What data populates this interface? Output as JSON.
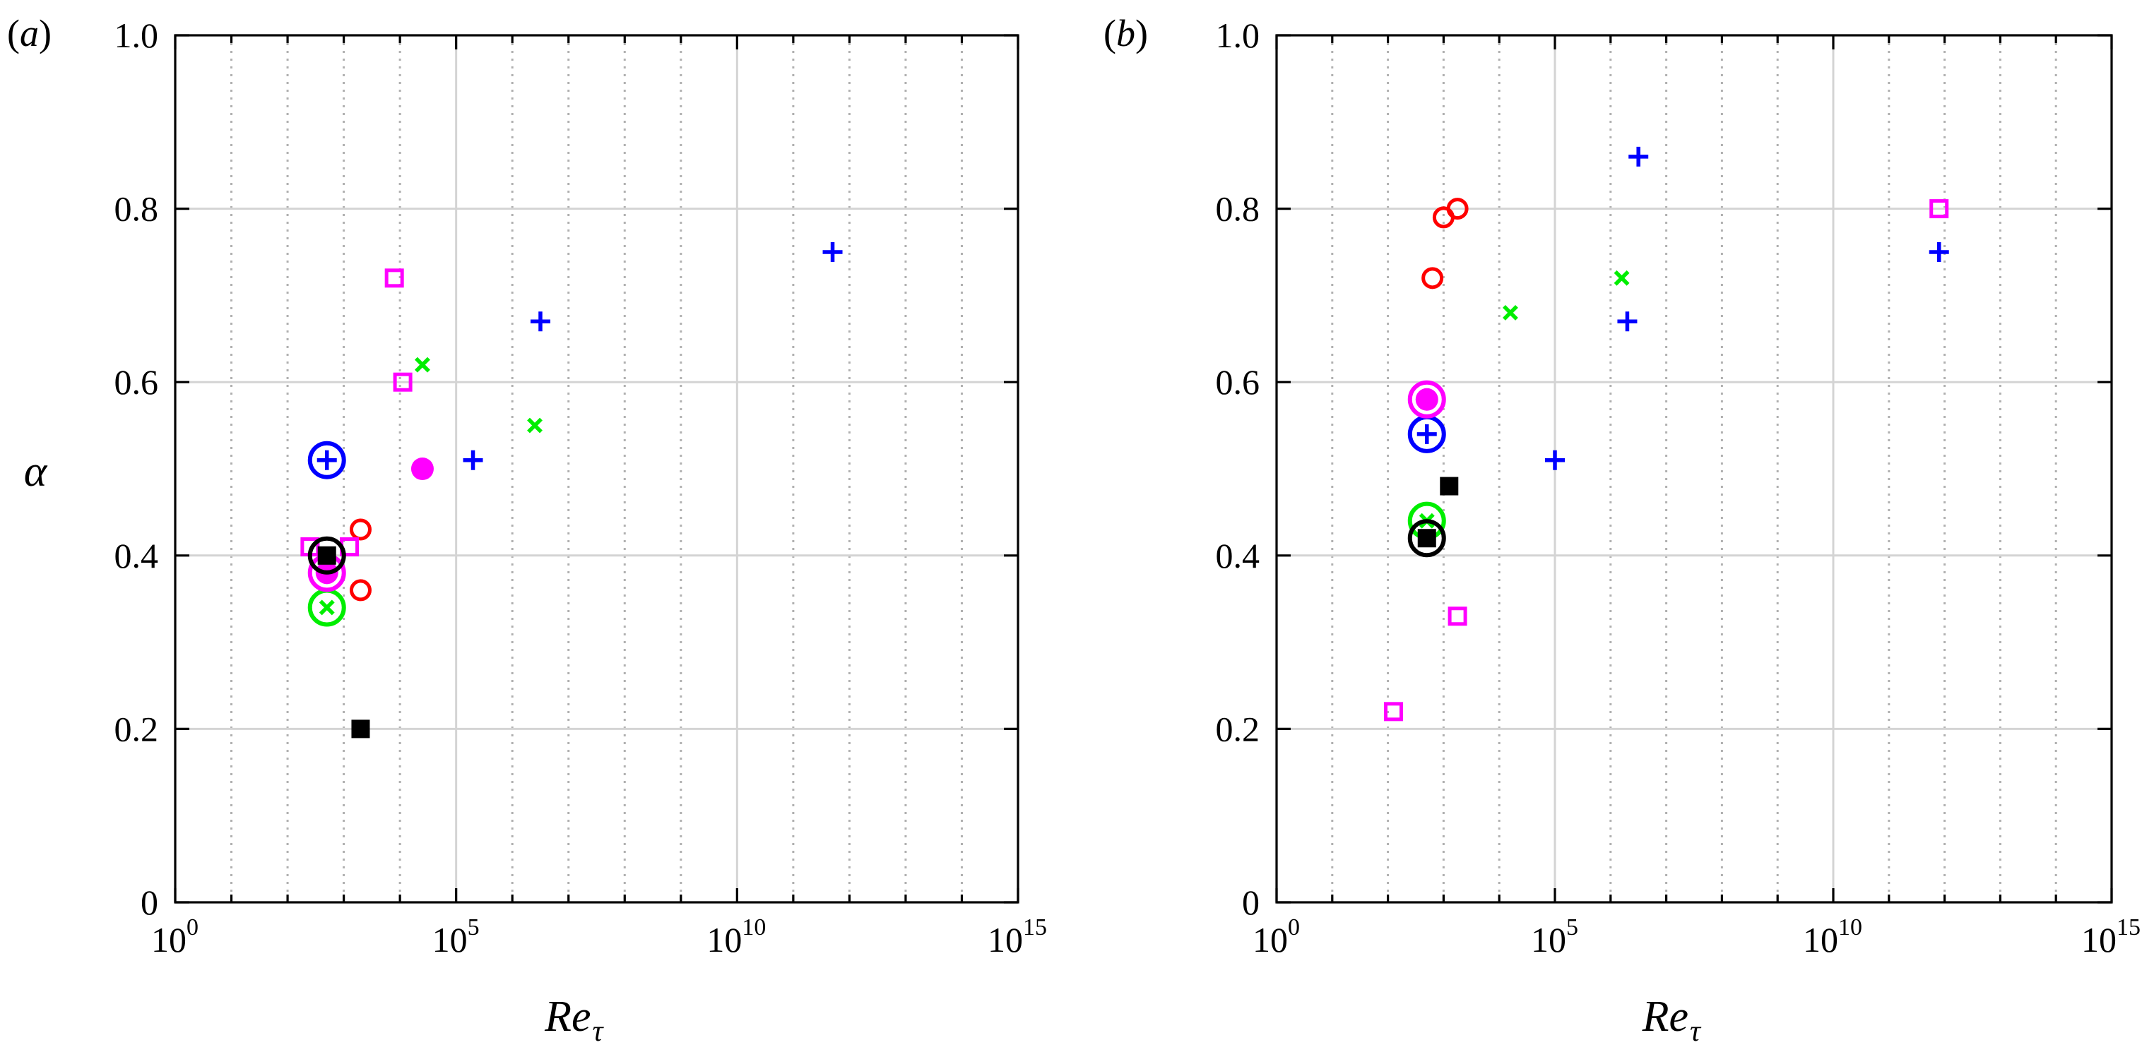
{
  "colors": {
    "blue": "#0000ff",
    "red": "#ff0000",
    "green": "#00ee00",
    "magenta": "#ff00ff",
    "black": "#000000"
  },
  "chart_data": [
    {
      "type": "scatter",
      "panel": "a",
      "panel_label": "(a)",
      "panel_label_text": "a",
      "xscale": "log",
      "xlim_exponent": [
        0,
        15
      ],
      "xticks_exponents": [
        0,
        5,
        10,
        15
      ],
      "xtick_base": "10",
      "ylim": [
        0,
        1.0
      ],
      "yticks": [
        "0",
        "0.2",
        "0.4",
        "0.6",
        "0.8",
        "1.0"
      ],
      "xlabel": "Re",
      "xlabel_sub": "τ",
      "ylabel": "α",
      "grid": true,
      "series": [
        {
          "name": "blue-plus",
          "color": "blue",
          "marker": "+",
          "points": [
            {
              "log10_x": 2.7,
              "y": 0.51,
              "circled": true
            },
            {
              "log10_x": 5.3,
              "y": 0.51
            },
            {
              "log10_x": 6.5,
              "y": 0.67
            },
            {
              "log10_x": 11.7,
              "y": 0.75
            }
          ]
        },
        {
          "name": "red-circle",
          "color": "red",
          "marker": "o",
          "points": [
            {
              "log10_x": 3.3,
              "y": 0.43
            },
            {
              "log10_x": 3.3,
              "y": 0.36
            }
          ]
        },
        {
          "name": "green-x",
          "color": "green",
          "marker": "x",
          "points": [
            {
              "log10_x": 2.7,
              "y": 0.34,
              "circled": true
            },
            {
              "log10_x": 4.4,
              "y": 0.62
            },
            {
              "log10_x": 6.4,
              "y": 0.55
            }
          ]
        },
        {
          "name": "magenta-square",
          "color": "magenta",
          "marker": "square-open",
          "points": [
            {
              "log10_x": 2.4,
              "y": 0.41
            },
            {
              "log10_x": 3.1,
              "y": 0.41
            },
            {
              "log10_x": 3.9,
              "y": 0.72
            },
            {
              "log10_x": 4.05,
              "y": 0.6
            }
          ]
        },
        {
          "name": "magenta-dot",
          "color": "magenta",
          "marker": "dot",
          "points": [
            {
              "log10_x": 2.7,
              "y": 0.38,
              "circled": true
            },
            {
              "log10_x": 4.4,
              "y": 0.5
            }
          ]
        },
        {
          "name": "black-square",
          "color": "black",
          "marker": "square-filled",
          "points": [
            {
              "log10_x": 2.7,
              "y": 0.4,
              "circled": true
            },
            {
              "log10_x": 3.3,
              "y": 0.2
            }
          ]
        }
      ]
    },
    {
      "type": "scatter",
      "panel": "b",
      "panel_label": "(b)",
      "panel_label_text": "b",
      "xscale": "log",
      "xlim_exponent": [
        0,
        15
      ],
      "xticks_exponents": [
        0,
        5,
        10,
        15
      ],
      "xtick_base": "10",
      "ylim": [
        0,
        1.0
      ],
      "yticks": [
        "0",
        "0.2",
        "0.4",
        "0.6",
        "0.8",
        "1.0"
      ],
      "xlabel": "Re",
      "xlabel_sub": "τ",
      "ylabel": "",
      "grid": true,
      "series": [
        {
          "name": "blue-plus",
          "color": "blue",
          "marker": "+",
          "points": [
            {
              "log10_x": 2.7,
              "y": 0.54,
              "circled": true
            },
            {
              "log10_x": 5.0,
              "y": 0.51
            },
            {
              "log10_x": 6.3,
              "y": 0.67
            },
            {
              "log10_x": 6.5,
              "y": 0.86
            },
            {
              "log10_x": 11.9,
              "y": 0.75
            }
          ]
        },
        {
          "name": "red-circle",
          "color": "red",
          "marker": "o",
          "points": [
            {
              "log10_x": 2.8,
              "y": 0.72
            },
            {
              "log10_x": 3.0,
              "y": 0.79
            },
            {
              "log10_x": 3.25,
              "y": 0.8
            }
          ]
        },
        {
          "name": "green-x",
          "color": "green",
          "marker": "x",
          "points": [
            {
              "log10_x": 2.7,
              "y": 0.44,
              "circled": true
            },
            {
              "log10_x": 4.2,
              "y": 0.68
            },
            {
              "log10_x": 6.2,
              "y": 0.72
            }
          ]
        },
        {
          "name": "magenta-square",
          "color": "magenta",
          "marker": "square-open",
          "points": [
            {
              "log10_x": 2.1,
              "y": 0.22
            },
            {
              "log10_x": 3.25,
              "y": 0.33
            },
            {
              "log10_x": 11.9,
              "y": 0.8
            }
          ]
        },
        {
          "name": "magenta-dot",
          "color": "magenta",
          "marker": "dot",
          "points": [
            {
              "log10_x": 2.7,
              "y": 0.58,
              "circled": true
            }
          ]
        },
        {
          "name": "black-square",
          "color": "black",
          "marker": "square-filled",
          "points": [
            {
              "log10_x": 2.7,
              "y": 0.42,
              "circled": true
            },
            {
              "log10_x": 3.1,
              "y": 0.48
            }
          ]
        }
      ]
    }
  ]
}
